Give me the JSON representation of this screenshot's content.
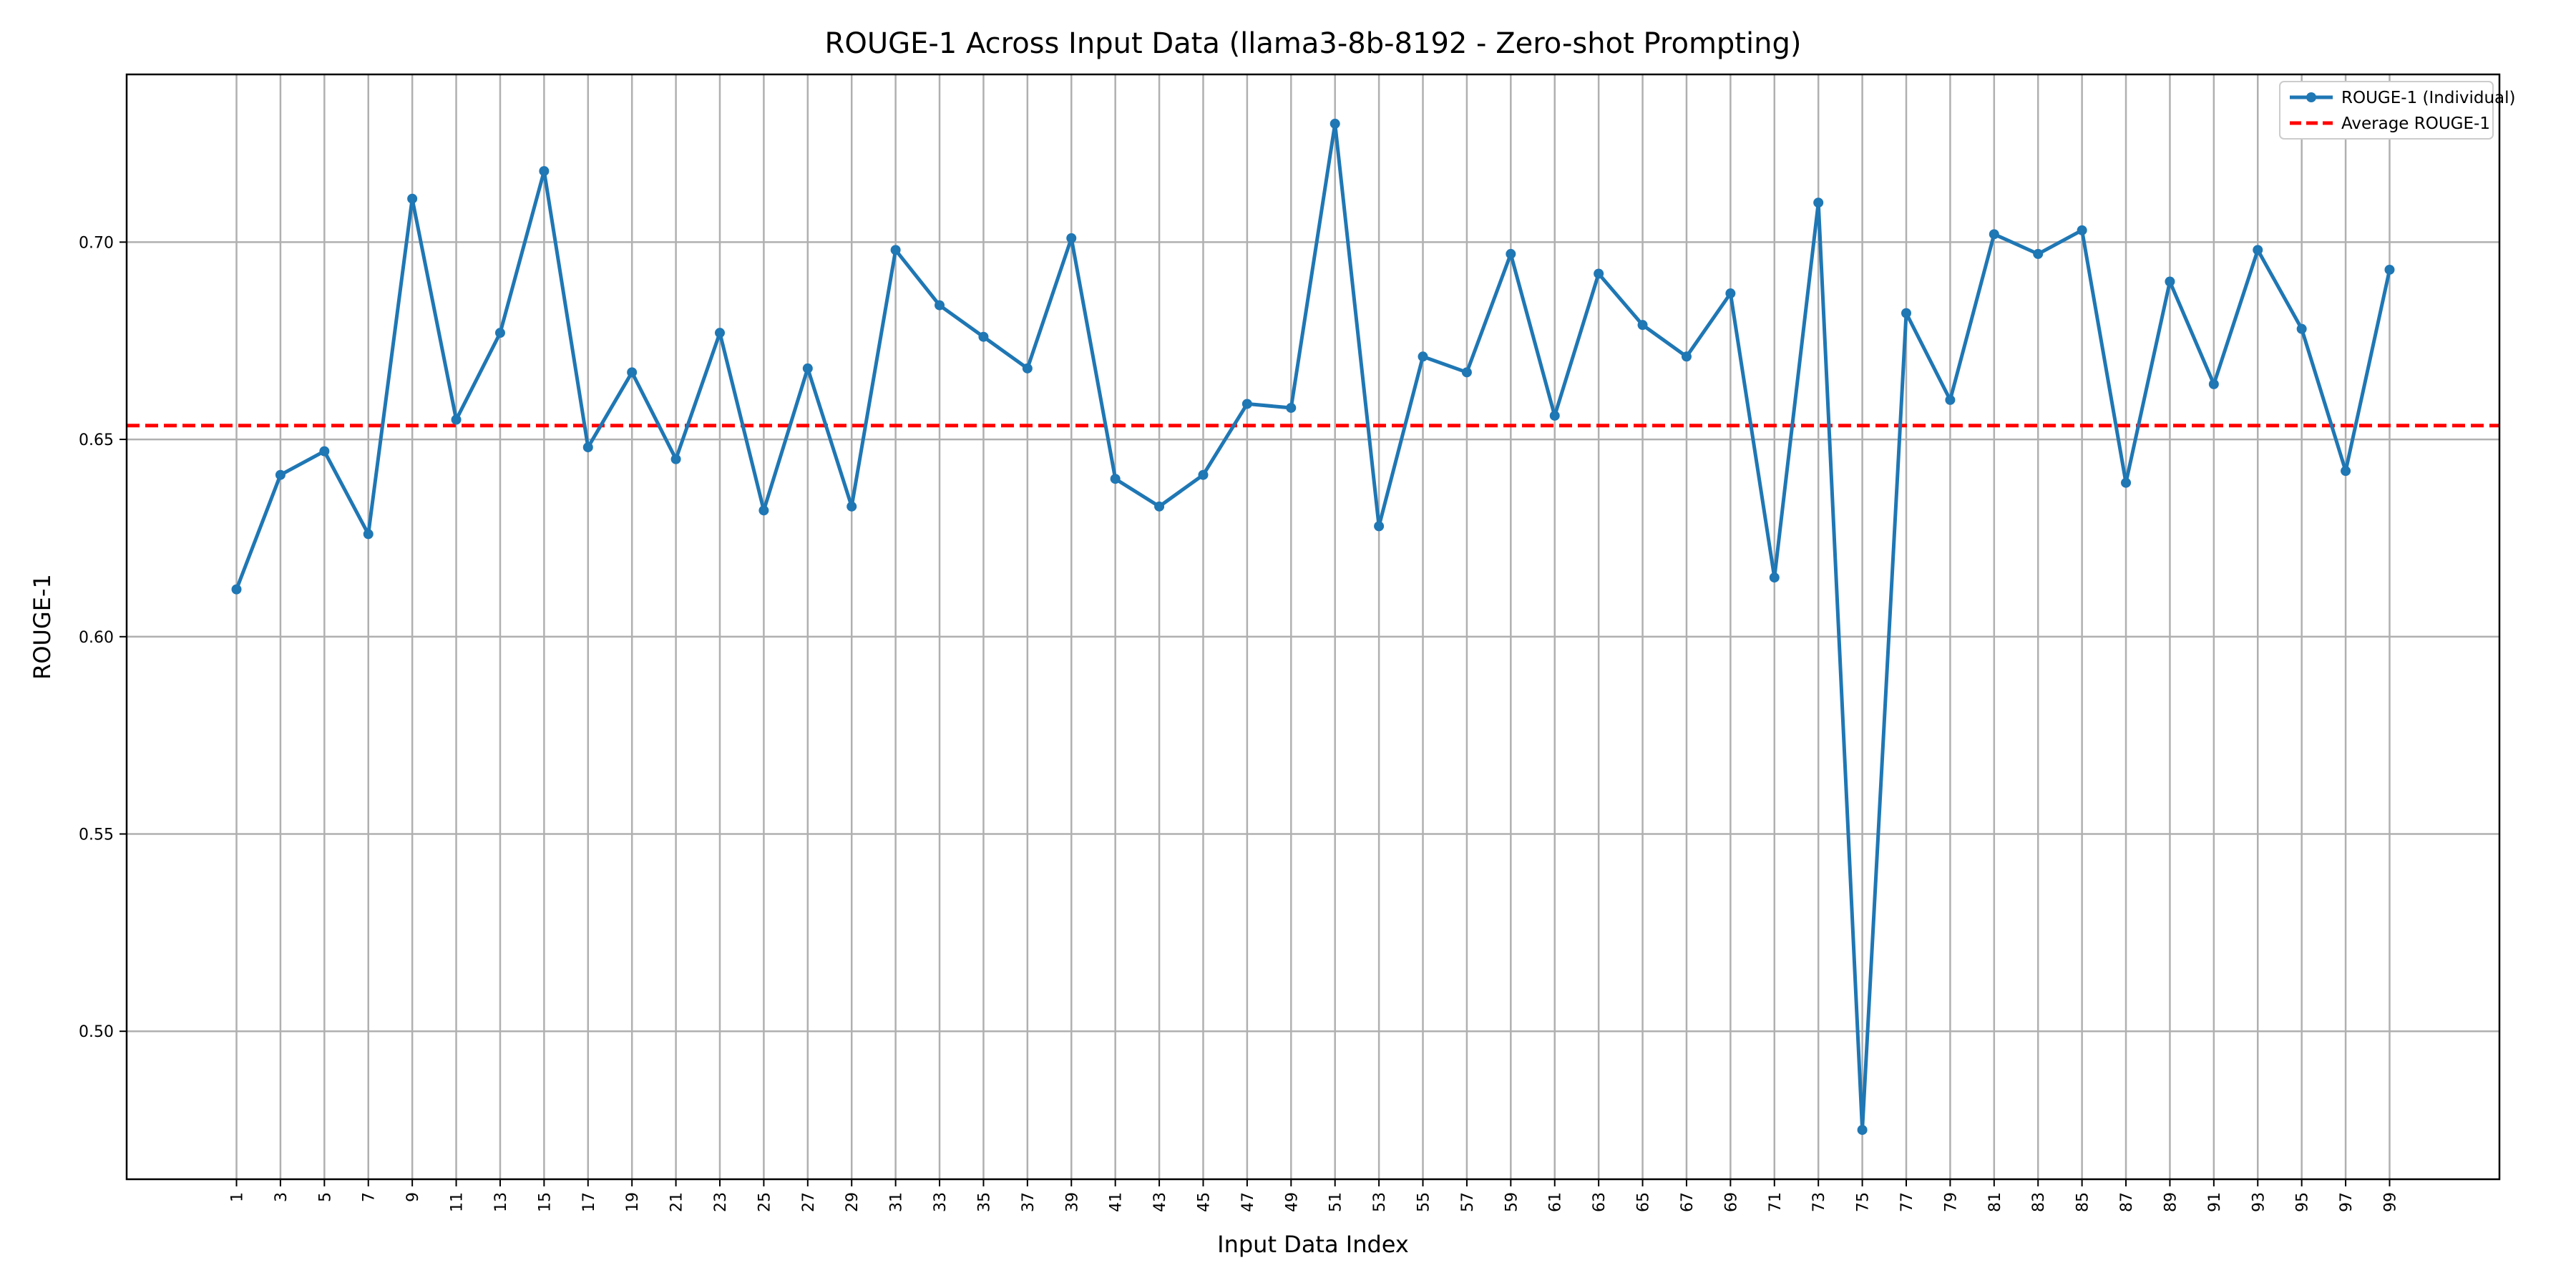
{
  "chart_data": {
    "type": "line",
    "title": "ROUGE-1 Across Input Data (llama3-8b-8192 - Zero-shot Prompting)",
    "xlabel": "Input Data Index",
    "ylabel": "ROUGE-1",
    "x": [
      1,
      3,
      5,
      7,
      9,
      11,
      13,
      15,
      17,
      19,
      21,
      23,
      25,
      27,
      29,
      31,
      33,
      35,
      37,
      39,
      41,
      43,
      45,
      47,
      49,
      51,
      53,
      55,
      57,
      59,
      61,
      63,
      65,
      67,
      69,
      71,
      73,
      75,
      77,
      79,
      81,
      83,
      85,
      87,
      89,
      91,
      93,
      95,
      97,
      99
    ],
    "x_tick_labels": [
      "1",
      "3",
      "5",
      "7",
      "9",
      "11",
      "13",
      "15",
      "17",
      "19",
      "21",
      "23",
      "25",
      "27",
      "29",
      "31",
      "33",
      "35",
      "37",
      "39",
      "41",
      "43",
      "45",
      "47",
      "49",
      "51",
      "53",
      "55",
      "57",
      "59",
      "61",
      "63",
      "65",
      "67",
      "69",
      "71",
      "73",
      "75",
      "77",
      "79",
      "81",
      "83",
      "85",
      "87",
      "89",
      "91",
      "93",
      "95",
      "97",
      "99"
    ],
    "xlim": [
      -4.0,
      104.0
    ],
    "ylim": [
      0.4625,
      0.7425
    ],
    "y_ticks": [
      0.5,
      0.55,
      0.6,
      0.65,
      0.7
    ],
    "y_tick_labels": [
      "0.50",
      "0.55",
      "0.60",
      "0.65",
      "0.70"
    ],
    "grid": true,
    "legend_position": "top-right",
    "series": [
      {
        "name": "ROUGE-1 (Individual)",
        "style": "line-with-markers",
        "color": "#1f77b4",
        "values": [
          0.612,
          0.641,
          0.647,
          0.626,
          0.711,
          0.655,
          0.677,
          0.718,
          0.648,
          0.667,
          0.645,
          0.677,
          0.632,
          0.668,
          0.633,
          0.698,
          0.684,
          0.676,
          0.668,
          0.701,
          0.64,
          0.633,
          0.641,
          0.659,
          0.658,
          0.73,
          0.628,
          0.671,
          0.667,
          0.697,
          0.656,
          0.692,
          0.679,
          0.671,
          0.687,
          0.615,
          0.71,
          0.475,
          0.682,
          0.66,
          0.702,
          0.697,
          0.703,
          0.639,
          0.69,
          0.664,
          0.698,
          0.678,
          0.642,
          0.693
        ]
      },
      {
        "name": "Average ROUGE-1",
        "style": "dashed-horizontal",
        "color": "#ff0000",
        "value": 0.6535
      }
    ]
  }
}
